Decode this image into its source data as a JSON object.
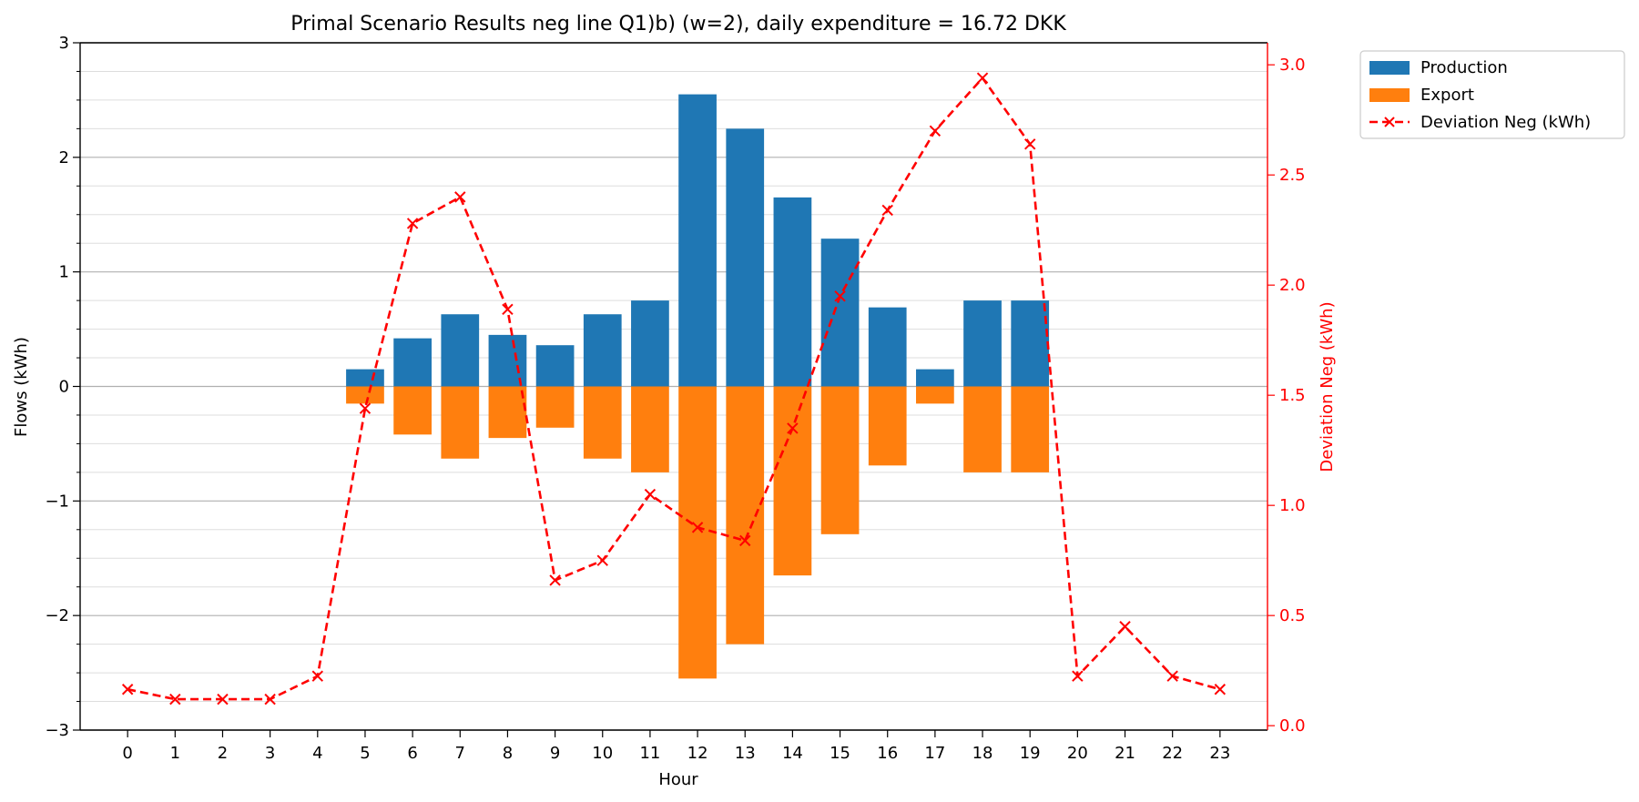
{
  "chart_data": {
    "type": "bar",
    "title": "Primal Scenario Results neg line Q1)b) (w=2), daily expenditure = 16.72 DKK",
    "xlabel": "Hour",
    "ylabel": "Flows (kWh)",
    "y2label": "Deviation Neg (kWh)",
    "categories": [
      "0",
      "1",
      "2",
      "3",
      "4",
      "5",
      "6",
      "7",
      "8",
      "9",
      "10",
      "11",
      "12",
      "13",
      "14",
      "15",
      "16",
      "17",
      "18",
      "19",
      "20",
      "21",
      "22",
      "23"
    ],
    "ylim": [
      -3,
      3
    ],
    "y2lim": [
      0,
      3.1
    ],
    "yticks": [
      "3",
      "2",
      "1",
      "0",
      "−1",
      "−2",
      "−3"
    ],
    "yticks_values": [
      3,
      2,
      1,
      0,
      -1,
      -2,
      -3
    ],
    "y2ticks": [
      "3.0",
      "2.5",
      "2.0",
      "1.5",
      "1.0",
      "0.5",
      "0.0"
    ],
    "y2ticks_values": [
      3.0,
      2.5,
      2.0,
      1.5,
      1.0,
      0.5,
      0.0
    ],
    "grid": true,
    "legend_position": "outside-top-right",
    "series": [
      {
        "name": "Production",
        "kind": "bar",
        "axis": "left",
        "color": "#1f77b4",
        "values": [
          0,
          0,
          0,
          0,
          0,
          0.15,
          0.42,
          0.63,
          0.45,
          0.36,
          0.63,
          0.75,
          2.55,
          2.25,
          1.65,
          1.29,
          0.69,
          0.15,
          0.75,
          0.75,
          0,
          0,
          0,
          0
        ]
      },
      {
        "name": "Export",
        "kind": "bar",
        "axis": "left",
        "color": "#ff7f0e",
        "values": [
          0,
          0,
          0,
          0,
          0,
          -0.15,
          -0.42,
          -0.63,
          -0.45,
          -0.36,
          -0.63,
          -0.75,
          -2.55,
          -2.25,
          -1.65,
          -1.29,
          -0.69,
          -0.15,
          -0.75,
          -0.75,
          0,
          0,
          0,
          0
        ]
      },
      {
        "name": "Deviation Neg (kWh)",
        "kind": "line",
        "axis": "right",
        "color": "#ff0000",
        "values": [
          0.165,
          0.12,
          0.12,
          0.12,
          0.225,
          1.44,
          2.28,
          2.4,
          1.89,
          0.66,
          0.75,
          1.05,
          0.9,
          0.84,
          1.35,
          1.95,
          2.34,
          2.7,
          2.94,
          2.64,
          0.225,
          0.45,
          0.225,
          0.165
        ]
      }
    ]
  }
}
